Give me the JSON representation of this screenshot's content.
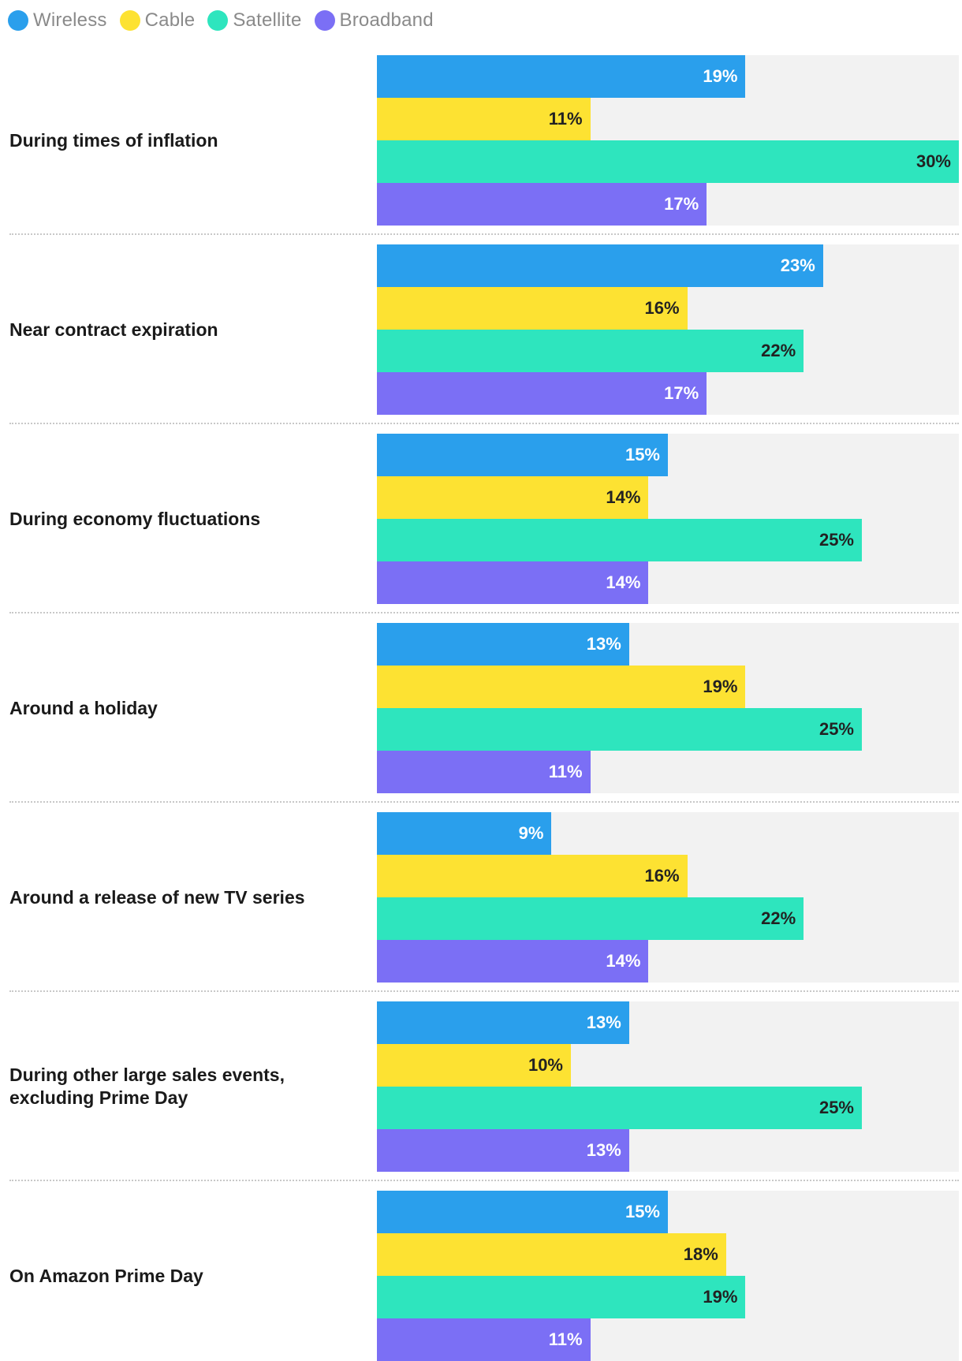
{
  "chart_data": {
    "type": "bar",
    "orientation": "horizontal",
    "legend": "top-left",
    "xlim": [
      0,
      30
    ],
    "categories": [
      "During times of inflation",
      "Near contract expiration",
      "During economy fluctuations",
      "Around a holiday",
      "Around a release of new TV series",
      "During other large sales events, excluding Prime Day",
      "On Amazon Prime Day"
    ],
    "series": [
      {
        "name": "Wireless",
        "color": "#2a9fec",
        "text_color": "#ffffff",
        "values": [
          19,
          23,
          15,
          13,
          9,
          13,
          15
        ],
        "labels": [
          "19%",
          "23%",
          "15%",
          "13%",
          "9%",
          "13%",
          "15%"
        ]
      },
      {
        "name": "Cable",
        "color": "#fde232",
        "text_color": "#222222",
        "values": [
          11,
          16,
          14,
          19,
          16,
          10,
          18
        ],
        "labels": [
          "11%",
          "16%",
          "14%",
          "19%",
          "16%",
          "10%",
          "18%"
        ]
      },
      {
        "name": "Satellite",
        "color": "#2ee5be",
        "text_color": "#222222",
        "values": [
          30,
          22,
          25,
          25,
          22,
          25,
          19
        ],
        "labels": [
          "30%",
          "22%",
          "25%",
          "25%",
          "22%",
          "25%",
          "19%"
        ]
      },
      {
        "name": "Broadband",
        "color": "#7b6ff5",
        "text_color": "#ffffff",
        "values": [
          17,
          17,
          14,
          11,
          14,
          13,
          11
        ],
        "labels": [
          "17%",
          "17%",
          "14%",
          "11%",
          "14%",
          "13%",
          "11%"
        ]
      }
    ]
  }
}
